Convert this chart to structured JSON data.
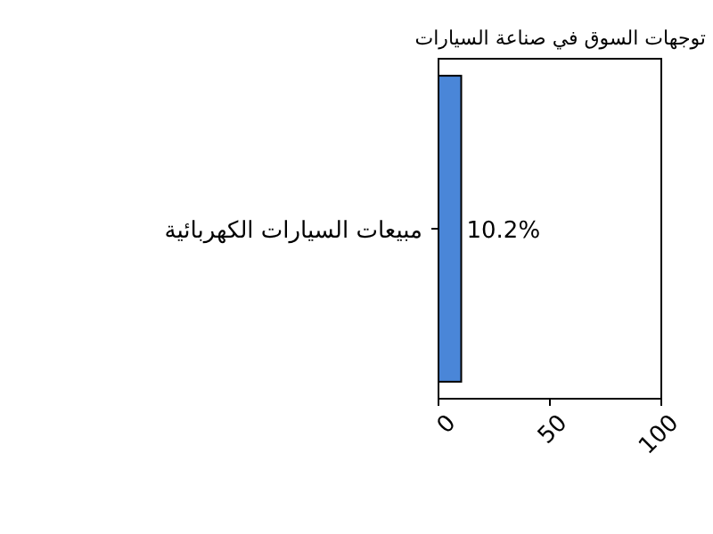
{
  "chart_data": {
    "type": "bar",
    "orientation": "horizontal",
    "title": "توجهات السوق في صناعة السيارات",
    "categories": [
      "مبيعات السيارات الكهربائية"
    ],
    "values": [
      10.2
    ],
    "color": "#4a86d8",
    "value_labels": [
      "10.2%"
    ],
    "xlim": [
      0,
      100
    ],
    "xticks": [
      0,
      50,
      100
    ],
    "grid": false
  }
}
